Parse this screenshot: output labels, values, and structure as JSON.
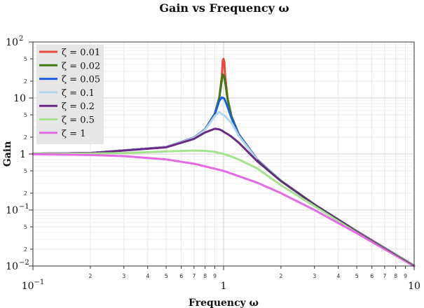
{
  "chart_data": {
    "type": "line",
    "title": "Gain vs Frequency ω",
    "xlabel": "Frequency ω",
    "ylabel": "Gain",
    "xscale": "log",
    "yscale": "log",
    "xlim": [
      0.1,
      10
    ],
    "ylim": [
      0.01,
      100
    ],
    "grid": true,
    "legend_position": "top-left",
    "x_major_ticks": [
      {
        "value": 0.1,
        "base": "10",
        "exp": "−1"
      },
      {
        "value": 1,
        "base": "1",
        "exp": ""
      },
      {
        "value": 10,
        "base": "10",
        "exp": ""
      }
    ],
    "x_minor_ticks": [
      {
        "value": 0.2,
        "label": "2"
      },
      {
        "value": 0.3,
        "label": "3"
      },
      {
        "value": 0.4,
        "label": "4"
      },
      {
        "value": 0.5,
        "label": "5"
      },
      {
        "value": 0.6,
        "label": "6"
      },
      {
        "value": 0.7,
        "label": "7"
      },
      {
        "value": 0.8,
        "label": "8"
      },
      {
        "value": 0.9,
        "label": "9"
      },
      {
        "value": 2,
        "label": "2"
      },
      {
        "value": 3,
        "label": "3"
      },
      {
        "value": 4,
        "label": "4"
      },
      {
        "value": 5,
        "label": "5"
      },
      {
        "value": 6,
        "label": "6"
      },
      {
        "value": 7,
        "label": "7"
      },
      {
        "value": 8,
        "label": "8"
      },
      {
        "value": 9,
        "label": "9"
      }
    ],
    "y_major_ticks": [
      {
        "value": 100,
        "base": "10",
        "exp": "2"
      },
      {
        "value": 10,
        "base": "10",
        "exp": ""
      },
      {
        "value": 1,
        "base": "1",
        "exp": ""
      },
      {
        "value": 0.1,
        "base": "10",
        "exp": "−1"
      },
      {
        "value": 0.01,
        "base": "10",
        "exp": "−2"
      }
    ],
    "y_minor_ticks": [
      {
        "value": 50,
        "label": "5"
      },
      {
        "value": 20,
        "label": "2"
      },
      {
        "value": 5,
        "label": "5"
      },
      {
        "value": 2,
        "label": "2"
      },
      {
        "value": 0.5,
        "label": "5"
      },
      {
        "value": 0.2,
        "label": "2"
      },
      {
        "value": 0.05,
        "label": "5"
      },
      {
        "value": 0.02,
        "label": "2"
      }
    ],
    "series": [
      {
        "name": "ζ = 0.01",
        "zeta": 0.01,
        "color": "#e8493a",
        "x": [
          0.1,
          0.2,
          0.5,
          0.7,
          0.8,
          0.9,
          0.95,
          0.98,
          0.99,
          1,
          1.01,
          1.02,
          1.05,
          1.1,
          1.2,
          1.5,
          2,
          3,
          5,
          10
        ],
        "y": [
          1.01,
          1.042,
          1.333,
          1.961,
          2.777,
          5.262,
          10.25,
          24.94,
          46.5,
          50,
          43.4,
          24.03,
          9.733,
          4.745,
          2.272,
          0.8,
          0.333,
          0.125,
          0.0417,
          0.0101
        ]
      },
      {
        "name": "ζ = 0.02",
        "zeta": 0.02,
        "color": "#3d7a14",
        "x": [
          0.1,
          0.2,
          0.5,
          0.7,
          0.8,
          0.9,
          0.95,
          0.98,
          0.99,
          1,
          1.01,
          1.02,
          1.05,
          1.1,
          1.2,
          1.5,
          2,
          3,
          5,
          10
        ],
        "y": [
          1.01,
          1.042,
          1.333,
          1.96,
          2.775,
          5.247,
          10.07,
          21.31,
          26.3,
          25,
          23.5,
          18.9,
          9.6,
          4.73,
          2.27,
          0.8,
          0.333,
          0.125,
          0.0417,
          0.0101
        ]
      },
      {
        "name": "ζ = 0.05",
        "zeta": 0.05,
        "color": "#1a5fe0",
        "x": [
          0.1,
          0.2,
          0.5,
          0.7,
          0.8,
          0.9,
          0.95,
          0.98,
          0.99,
          1,
          1.01,
          1.02,
          1.05,
          1.1,
          1.2,
          1.5,
          2,
          3,
          5,
          10
        ],
        "y": [
          1.01,
          1.042,
          1.332,
          1.955,
          2.762,
          5.154,
          8.97,
          10.23,
          10.0,
          10,
          9.7,
          9.0,
          6.91,
          4.4,
          2.23,
          0.798,
          0.333,
          0.125,
          0.0417,
          0.0101
        ]
      },
      {
        "name": "ζ = 0.1",
        "zeta": 0.1,
        "color": "#b4d4ec",
        "x": [
          0.1,
          0.2,
          0.5,
          0.7,
          0.8,
          0.9,
          0.95,
          0.98,
          0.99,
          1,
          1.01,
          1.02,
          1.05,
          1.1,
          1.2,
          1.5,
          2,
          3,
          5,
          10
        ],
        "y": [
          1.01,
          1.041,
          1.329,
          1.935,
          2.712,
          4.762,
          5.64,
          5.16,
          5.05,
          5.0,
          4.9,
          4.78,
          4.2,
          3.62,
          2.12,
          0.79,
          0.332,
          0.125,
          0.0417,
          0.0101
        ]
      },
      {
        "name": "ζ = 0.2",
        "zeta": 0.2,
        "color": "#6a2a85",
        "x": [
          0.1,
          0.2,
          0.5,
          0.7,
          0.8,
          0.9,
          0.95,
          0.98,
          0.99,
          1,
          1.01,
          1.02,
          1.05,
          1.1,
          1.2,
          1.5,
          2,
          3,
          5,
          10
        ],
        "y": [
          1.01,
          1.039,
          1.315,
          1.863,
          2.423,
          2.83,
          2.75,
          2.62,
          2.57,
          2.5,
          2.45,
          2.4,
          2.27,
          2.04,
          1.6,
          0.745,
          0.329,
          0.125,
          0.0416,
          0.0101
        ]
      },
      {
        "name": "ζ = 0.5",
        "zeta": 0.5,
        "color": "#a4e28e",
        "x": [
          0.1,
          0.2,
          0.3,
          0.5,
          0.7,
          0.8,
          0.9,
          1,
          1.1,
          1.2,
          1.5,
          2,
          3,
          5,
          10
        ],
        "y": [
          1.005,
          1.019,
          1.04,
          1.109,
          1.154,
          1.14,
          1.09,
          1.0,
          0.9,
          0.8,
          0.553,
          0.277,
          0.117,
          0.0407,
          0.01
        ]
      },
      {
        "name": "ζ = 1",
        "zeta": 1,
        "color": "#e46ae6",
        "x": [
          0.1,
          0.2,
          0.3,
          0.5,
          0.7,
          1,
          1.5,
          2,
          3,
          5,
          10
        ],
        "y": [
          0.99,
          0.962,
          0.917,
          0.8,
          0.671,
          0.5,
          0.308,
          0.2,
          0.1,
          0.0385,
          0.0099
        ]
      }
    ]
  }
}
